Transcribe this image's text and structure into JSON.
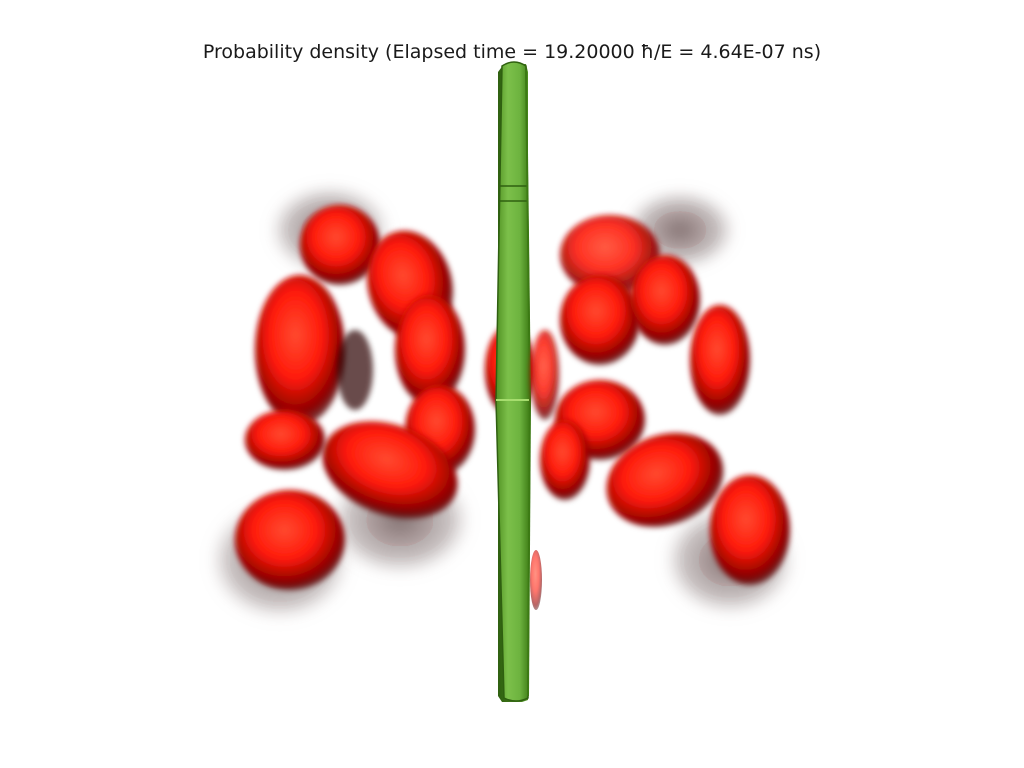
{
  "title": "Probability density (Elapsed time = 19.20000 ħ/E = 4.64E-07 ns)",
  "colors": {
    "background": "#ffffff",
    "density": "#ff1a0a",
    "density_shadow": "#3a0000",
    "barrier": "#6db33f",
    "barrier_edge": "#3c7a14"
  },
  "scene": {
    "density_label": "probability-density-volume",
    "barrier_label": "potential-barrier-slab"
  }
}
